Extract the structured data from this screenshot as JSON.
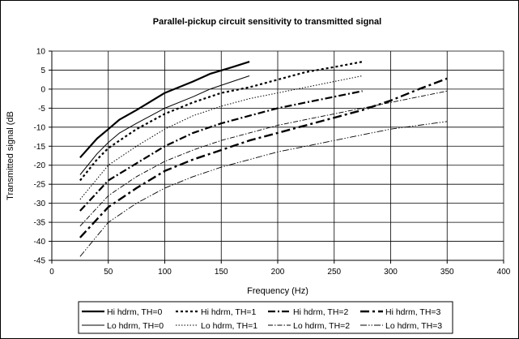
{
  "chart_data": {
    "type": "line",
    "title": "Parallel-pickup circuit sensitivity to transmitted signal",
    "xlabel": "Frequency (Hz)",
    "ylabel": "Transmitted signal (dB",
    "xlim": [
      0,
      400
    ],
    "ylim": [
      -45,
      10
    ],
    "xticks": [
      0,
      50,
      100,
      150,
      200,
      250,
      300,
      350,
      400
    ],
    "yticks": [
      10,
      5,
      0,
      -5,
      -10,
      -15,
      -20,
      -25,
      -30,
      -35,
      -40,
      -45
    ],
    "grid": "horizontal-and-vertical",
    "legend_position": "bottom",
    "series": [
      {
        "name": "Hi hdrm, TH=0",
        "color": "#000000",
        "x": [
          25,
          40,
          50,
          60,
          75,
          100,
          125,
          140,
          160,
          175
        ],
        "y": [
          -18,
          -13,
          -10.5,
          -8,
          -5.5,
          -1,
          2,
          4,
          5.8,
          7.2
        ]
      },
      {
        "name": "Hi hdrm, TH=1",
        "color": "#000000",
        "x": [
          25,
          40,
          50,
          75,
          100,
          125,
          150,
          175,
          200,
          225,
          250,
          275
        ],
        "y": [
          -24,
          -18.5,
          -15.5,
          -10.5,
          -6.5,
          -3.5,
          -1,
          0.5,
          2.5,
          4.5,
          5.8,
          7.2
        ]
      },
      {
        "name": "Hi hdrm, TH=2",
        "color": "#000000",
        "x": [
          25,
          50,
          75,
          100,
          125,
          150,
          175,
          200,
          225,
          250,
          275
        ],
        "y": [
          -32,
          -24,
          -19.5,
          -15,
          -11.5,
          -9,
          -7,
          -5,
          -3.5,
          -2,
          -0.5
        ]
      },
      {
        "name": "Hi hdrm, TH=3",
        "color": "#000000",
        "x": [
          25,
          50,
          75,
          100,
          125,
          150,
          175,
          200,
          225,
          250,
          275,
          300,
          325,
          350
        ],
        "y": [
          -39,
          -31,
          -26,
          -21.5,
          -18.5,
          -16,
          -13.5,
          -11.5,
          -9.5,
          -7.5,
          -5.5,
          -3,
          0,
          2.8
        ]
      },
      {
        "name": "Lo hdrm, TH=0",
        "color": "#000000",
        "x": [
          25,
          40,
          50,
          60,
          75,
          100,
          125,
          140,
          160,
          175
        ],
        "y": [
          -22.5,
          -17,
          -14,
          -11.5,
          -9,
          -5,
          -2,
          0,
          2,
          3.5
        ]
      },
      {
        "name": "Lo hdrm, TH=1",
        "color": "#000000",
        "x": [
          25,
          50,
          75,
          100,
          125,
          150,
          175,
          200,
          225,
          250,
          275
        ],
        "y": [
          -29,
          -20,
          -15,
          -10.5,
          -7,
          -4.5,
          -2.5,
          -1,
          0.5,
          2,
          3.5
        ]
      },
      {
        "name": "Lo hdrm, TH=2",
        "color": "#000000",
        "x": [
          25,
          50,
          75,
          100,
          125,
          150,
          175,
          200,
          225,
          250,
          275,
          300,
          325,
          350
        ],
        "y": [
          -36,
          -28,
          -23,
          -19,
          -16,
          -13.5,
          -11.5,
          -9.5,
          -8,
          -6.5,
          -5,
          -3.5,
          -2,
          -0.5
        ]
      },
      {
        "name": "Lo hdrm, TH=3",
        "color": "#000000",
        "x": [
          25,
          50,
          75,
          100,
          125,
          150,
          175,
          200,
          225,
          250,
          275,
          300,
          325,
          350
        ],
        "y": [
          -44,
          -35,
          -30,
          -26,
          -23,
          -20.5,
          -18.5,
          -16.5,
          -15,
          -13.5,
          -12,
          -10.5,
          -9.5,
          -8.5
        ]
      }
    ]
  }
}
